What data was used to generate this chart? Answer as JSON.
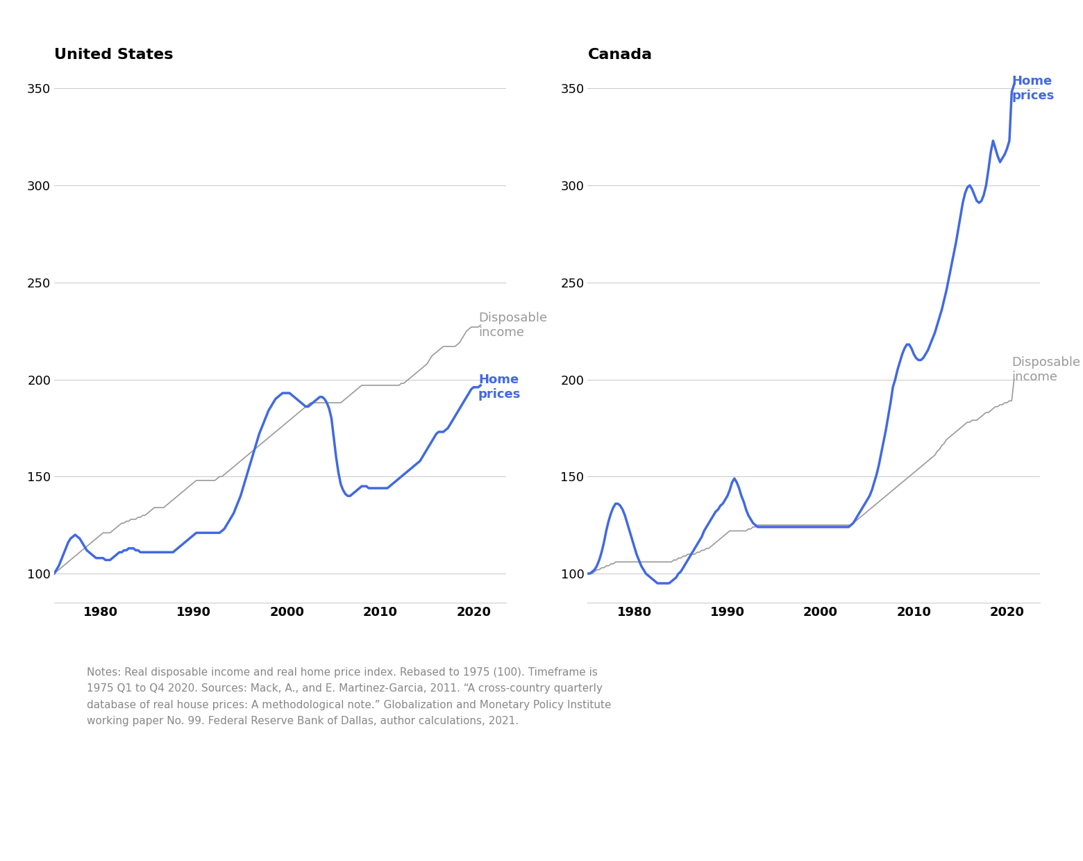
{
  "title_us": "United States",
  "title_ca": "Canada",
  "home_price_color": "#4169E1",
  "income_color": "#999999",
  "home_price_lw": 2.5,
  "income_lw": 1.2,
  "ylim": [
    85,
    360
  ],
  "yticks": [
    100,
    150,
    200,
    250,
    300,
    350
  ],
  "xlim_us": [
    1975.0,
    2023.5
  ],
  "xlim_ca": [
    1975.0,
    2023.5
  ],
  "xticks": [
    1980,
    1990,
    2000,
    2010,
    2020
  ],
  "background_color": "#ffffff",
  "grid_color": "#cccccc",
  "title_fontsize": 16,
  "tick_fontsize": 13,
  "annotation_fontsize": 13,
  "notes_text": "Notes: Real disposable income and real home price index. Rebased to 1975 (100). Timeframe is\n1975 Q1 to Q4 2020. Sources: Mack, A., and E. Martinez-Garcia, 2011. “A cross-country quarterly\ndatabase of real house prices: A methodological note.” Globalization and Monetary Policy Institute\nworking paper No. 99. Federal Reserve Bank of Dallas, author calculations, 2021.",
  "us_home_prices": [
    100,
    102,
    104,
    107,
    110,
    113,
    116,
    118,
    119,
    120,
    119,
    118,
    116,
    114,
    112,
    111,
    110,
    109,
    108,
    108,
    108,
    108,
    107,
    107,
    107,
    108,
    109,
    110,
    111,
    111,
    112,
    112,
    113,
    113,
    113,
    112,
    112,
    111,
    111,
    111,
    111,
    111,
    111,
    111,
    111,
    111,
    111,
    111,
    111,
    111,
    111,
    111,
    112,
    113,
    114,
    115,
    116,
    117,
    118,
    119,
    120,
    121,
    121,
    121,
    121,
    121,
    121,
    121,
    121,
    121,
    121,
    121,
    122,
    123,
    125,
    127,
    129,
    131,
    134,
    137,
    140,
    144,
    148,
    152,
    156,
    160,
    164,
    168,
    172,
    175,
    178,
    181,
    184,
    186,
    188,
    190,
    191,
    192,
    193,
    193,
    193,
    193,
    192,
    191,
    190,
    189,
    188,
    187,
    186,
    186,
    187,
    188,
    189,
    190,
    191,
    191,
    190,
    188,
    185,
    180,
    170,
    160,
    152,
    146,
    143,
    141,
    140,
    140,
    141,
    142,
    143,
    144,
    145,
    145,
    145,
    144,
    144,
    144,
    144,
    144,
    144,
    144,
    144,
    144,
    145,
    146,
    147,
    148,
    149,
    150,
    151,
    152,
    153,
    154,
    155,
    156,
    157,
    158,
    160,
    162,
    164,
    166,
    168,
    170,
    172,
    173,
    173,
    173,
    174,
    175,
    177,
    179,
    181,
    183,
    185,
    187,
    189,
    191,
    193,
    195,
    196,
    196,
    196,
    197
  ],
  "us_disposable_income": [
    100,
    101,
    102,
    103,
    104,
    105,
    106,
    107,
    108,
    109,
    110,
    111,
    112,
    113,
    114,
    115,
    116,
    117,
    118,
    119,
    120,
    121,
    121,
    121,
    121,
    122,
    123,
    124,
    125,
    126,
    126,
    127,
    127,
    128,
    128,
    128,
    129,
    129,
    130,
    130,
    131,
    132,
    133,
    134,
    134,
    134,
    134,
    134,
    135,
    136,
    137,
    138,
    139,
    140,
    141,
    142,
    143,
    144,
    145,
    146,
    147,
    148,
    148,
    148,
    148,
    148,
    148,
    148,
    148,
    148,
    149,
    150,
    150,
    151,
    152,
    153,
    154,
    155,
    156,
    157,
    158,
    159,
    160,
    161,
    162,
    163,
    164,
    165,
    166,
    167,
    168,
    169,
    170,
    171,
    172,
    173,
    174,
    175,
    176,
    177,
    178,
    179,
    180,
    181,
    182,
    183,
    184,
    185,
    186,
    187,
    188,
    188,
    188,
    188,
    188,
    188,
    188,
    188,
    188,
    188,
    188,
    188,
    188,
    188,
    189,
    190,
    191,
    192,
    193,
    194,
    195,
    196,
    197,
    197,
    197,
    197,
    197,
    197,
    197,
    197,
    197,
    197,
    197,
    197,
    197,
    197,
    197,
    197,
    197,
    198,
    198,
    199,
    200,
    201,
    202,
    203,
    204,
    205,
    206,
    207,
    208,
    210,
    212,
    213,
    214,
    215,
    216,
    217,
    217,
    217,
    217,
    217,
    217,
    218,
    219,
    221,
    223,
    225,
    226,
    227,
    227,
    227,
    227,
    228
  ],
  "ca_home_prices": [
    100,
    100,
    101,
    102,
    104,
    107,
    111,
    116,
    122,
    127,
    131,
    134,
    136,
    136,
    135,
    133,
    130,
    126,
    122,
    118,
    114,
    110,
    107,
    104,
    102,
    100,
    99,
    98,
    97,
    96,
    95,
    95,
    95,
    95,
    95,
    95,
    96,
    97,
    98,
    100,
    101,
    103,
    105,
    107,
    109,
    111,
    113,
    115,
    117,
    119,
    122,
    124,
    126,
    128,
    130,
    132,
    133,
    135,
    136,
    138,
    140,
    143,
    147,
    149,
    147,
    144,
    140,
    137,
    133,
    130,
    128,
    126,
    125,
    124,
    124,
    124,
    124,
    124,
    124,
    124,
    124,
    124,
    124,
    124,
    124,
    124,
    124,
    124,
    124,
    124,
    124,
    124,
    124,
    124,
    124,
    124,
    124,
    124,
    124,
    124,
    124,
    124,
    124,
    124,
    124,
    124,
    124,
    124,
    124,
    124,
    124,
    124,
    124,
    125,
    126,
    128,
    130,
    132,
    134,
    136,
    138,
    140,
    143,
    147,
    151,
    156,
    162,
    168,
    174,
    181,
    188,
    196,
    200,
    205,
    209,
    213,
    216,
    218,
    218,
    216,
    213,
    211,
    210,
    210,
    211,
    213,
    215,
    218,
    221,
    224,
    228,
    232,
    236,
    241,
    246,
    252,
    258,
    264,
    270,
    277,
    284,
    291,
    296,
    299,
    300,
    298,
    295,
    292,
    291,
    292,
    295,
    300,
    308,
    317,
    323,
    319,
    315,
    312,
    314,
    316,
    319,
    323,
    348,
    352
  ],
  "ca_disposable_income": [
    100,
    100,
    100,
    101,
    102,
    102,
    103,
    103,
    104,
    104,
    105,
    105,
    106,
    106,
    106,
    106,
    106,
    106,
    106,
    106,
    106,
    106,
    106,
    106,
    106,
    106,
    106,
    106,
    106,
    106,
    106,
    106,
    106,
    106,
    106,
    106,
    106,
    107,
    107,
    108,
    108,
    109,
    109,
    110,
    110,
    110,
    110,
    111,
    111,
    112,
    112,
    113,
    113,
    114,
    115,
    116,
    117,
    118,
    119,
    120,
    121,
    122,
    122,
    122,
    122,
    122,
    122,
    122,
    122,
    123,
    123,
    124,
    124,
    125,
    125,
    125,
    125,
    125,
    125,
    125,
    125,
    125,
    125,
    125,
    125,
    125,
    125,
    125,
    125,
    125,
    125,
    125,
    125,
    125,
    125,
    125,
    125,
    125,
    125,
    125,
    125,
    125,
    125,
    125,
    125,
    125,
    125,
    125,
    125,
    125,
    125,
    125,
    125,
    125,
    126,
    127,
    128,
    129,
    130,
    131,
    132,
    133,
    134,
    135,
    136,
    137,
    138,
    139,
    140,
    141,
    142,
    143,
    144,
    145,
    146,
    147,
    148,
    149,
    150,
    151,
    152,
    153,
    154,
    155,
    156,
    157,
    158,
    159,
    160,
    161,
    163,
    164,
    166,
    167,
    169,
    170,
    171,
    172,
    173,
    174,
    175,
    176,
    177,
    178,
    178,
    179,
    179,
    179,
    180,
    181,
    182,
    183,
    183,
    184,
    185,
    186,
    186,
    187,
    187,
    188,
    188,
    189,
    189,
    200
  ]
}
